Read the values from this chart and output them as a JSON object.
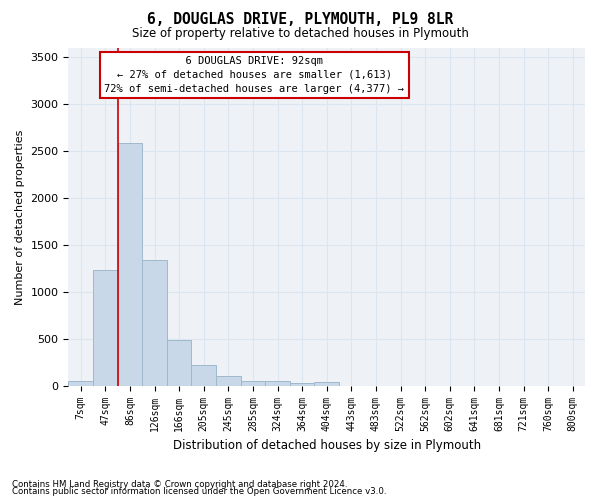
{
  "title": "6, DOUGLAS DRIVE, PLYMOUTH, PL9 8LR",
  "subtitle": "Size of property relative to detached houses in Plymouth",
  "xlabel": "Distribution of detached houses by size in Plymouth",
  "ylabel": "Number of detached properties",
  "bin_labels": [
    "7sqm",
    "47sqm",
    "86sqm",
    "126sqm",
    "166sqm",
    "205sqm",
    "245sqm",
    "285sqm",
    "324sqm",
    "364sqm",
    "404sqm",
    "443sqm",
    "483sqm",
    "522sqm",
    "562sqm",
    "602sqm",
    "641sqm",
    "681sqm",
    "721sqm",
    "760sqm",
    "800sqm"
  ],
  "bar_values": [
    50,
    1240,
    2580,
    1340,
    490,
    220,
    110,
    55,
    50,
    30,
    40,
    0,
    0,
    0,
    0,
    0,
    0,
    0,
    0,
    0,
    0
  ],
  "bar_color": "#c8d8e8",
  "bar_edge_color": "#a0b8cc",
  "vline_x_index": 2,
  "marker_label": "6 DOUGLAS DRIVE: 92sqm",
  "annotation_line1": "← 27% of detached houses are smaller (1,613)",
  "annotation_line2": "72% of semi-detached houses are larger (4,377) →",
  "vline_color": "#cc0000",
  "annotation_box_facecolor": "#ffffff",
  "annotation_box_edgecolor": "#cc0000",
  "grid_color": "#dce6f0",
  "background_color": "#eef2f7",
  "ylim": [
    0,
    3600
  ],
  "yticks": [
    0,
    500,
    1000,
    1500,
    2000,
    2500,
    3000,
    3500
  ],
  "footer_line1": "Contains HM Land Registry data © Crown copyright and database right 2024.",
  "footer_line2": "Contains public sector information licensed under the Open Government Licence v3.0."
}
